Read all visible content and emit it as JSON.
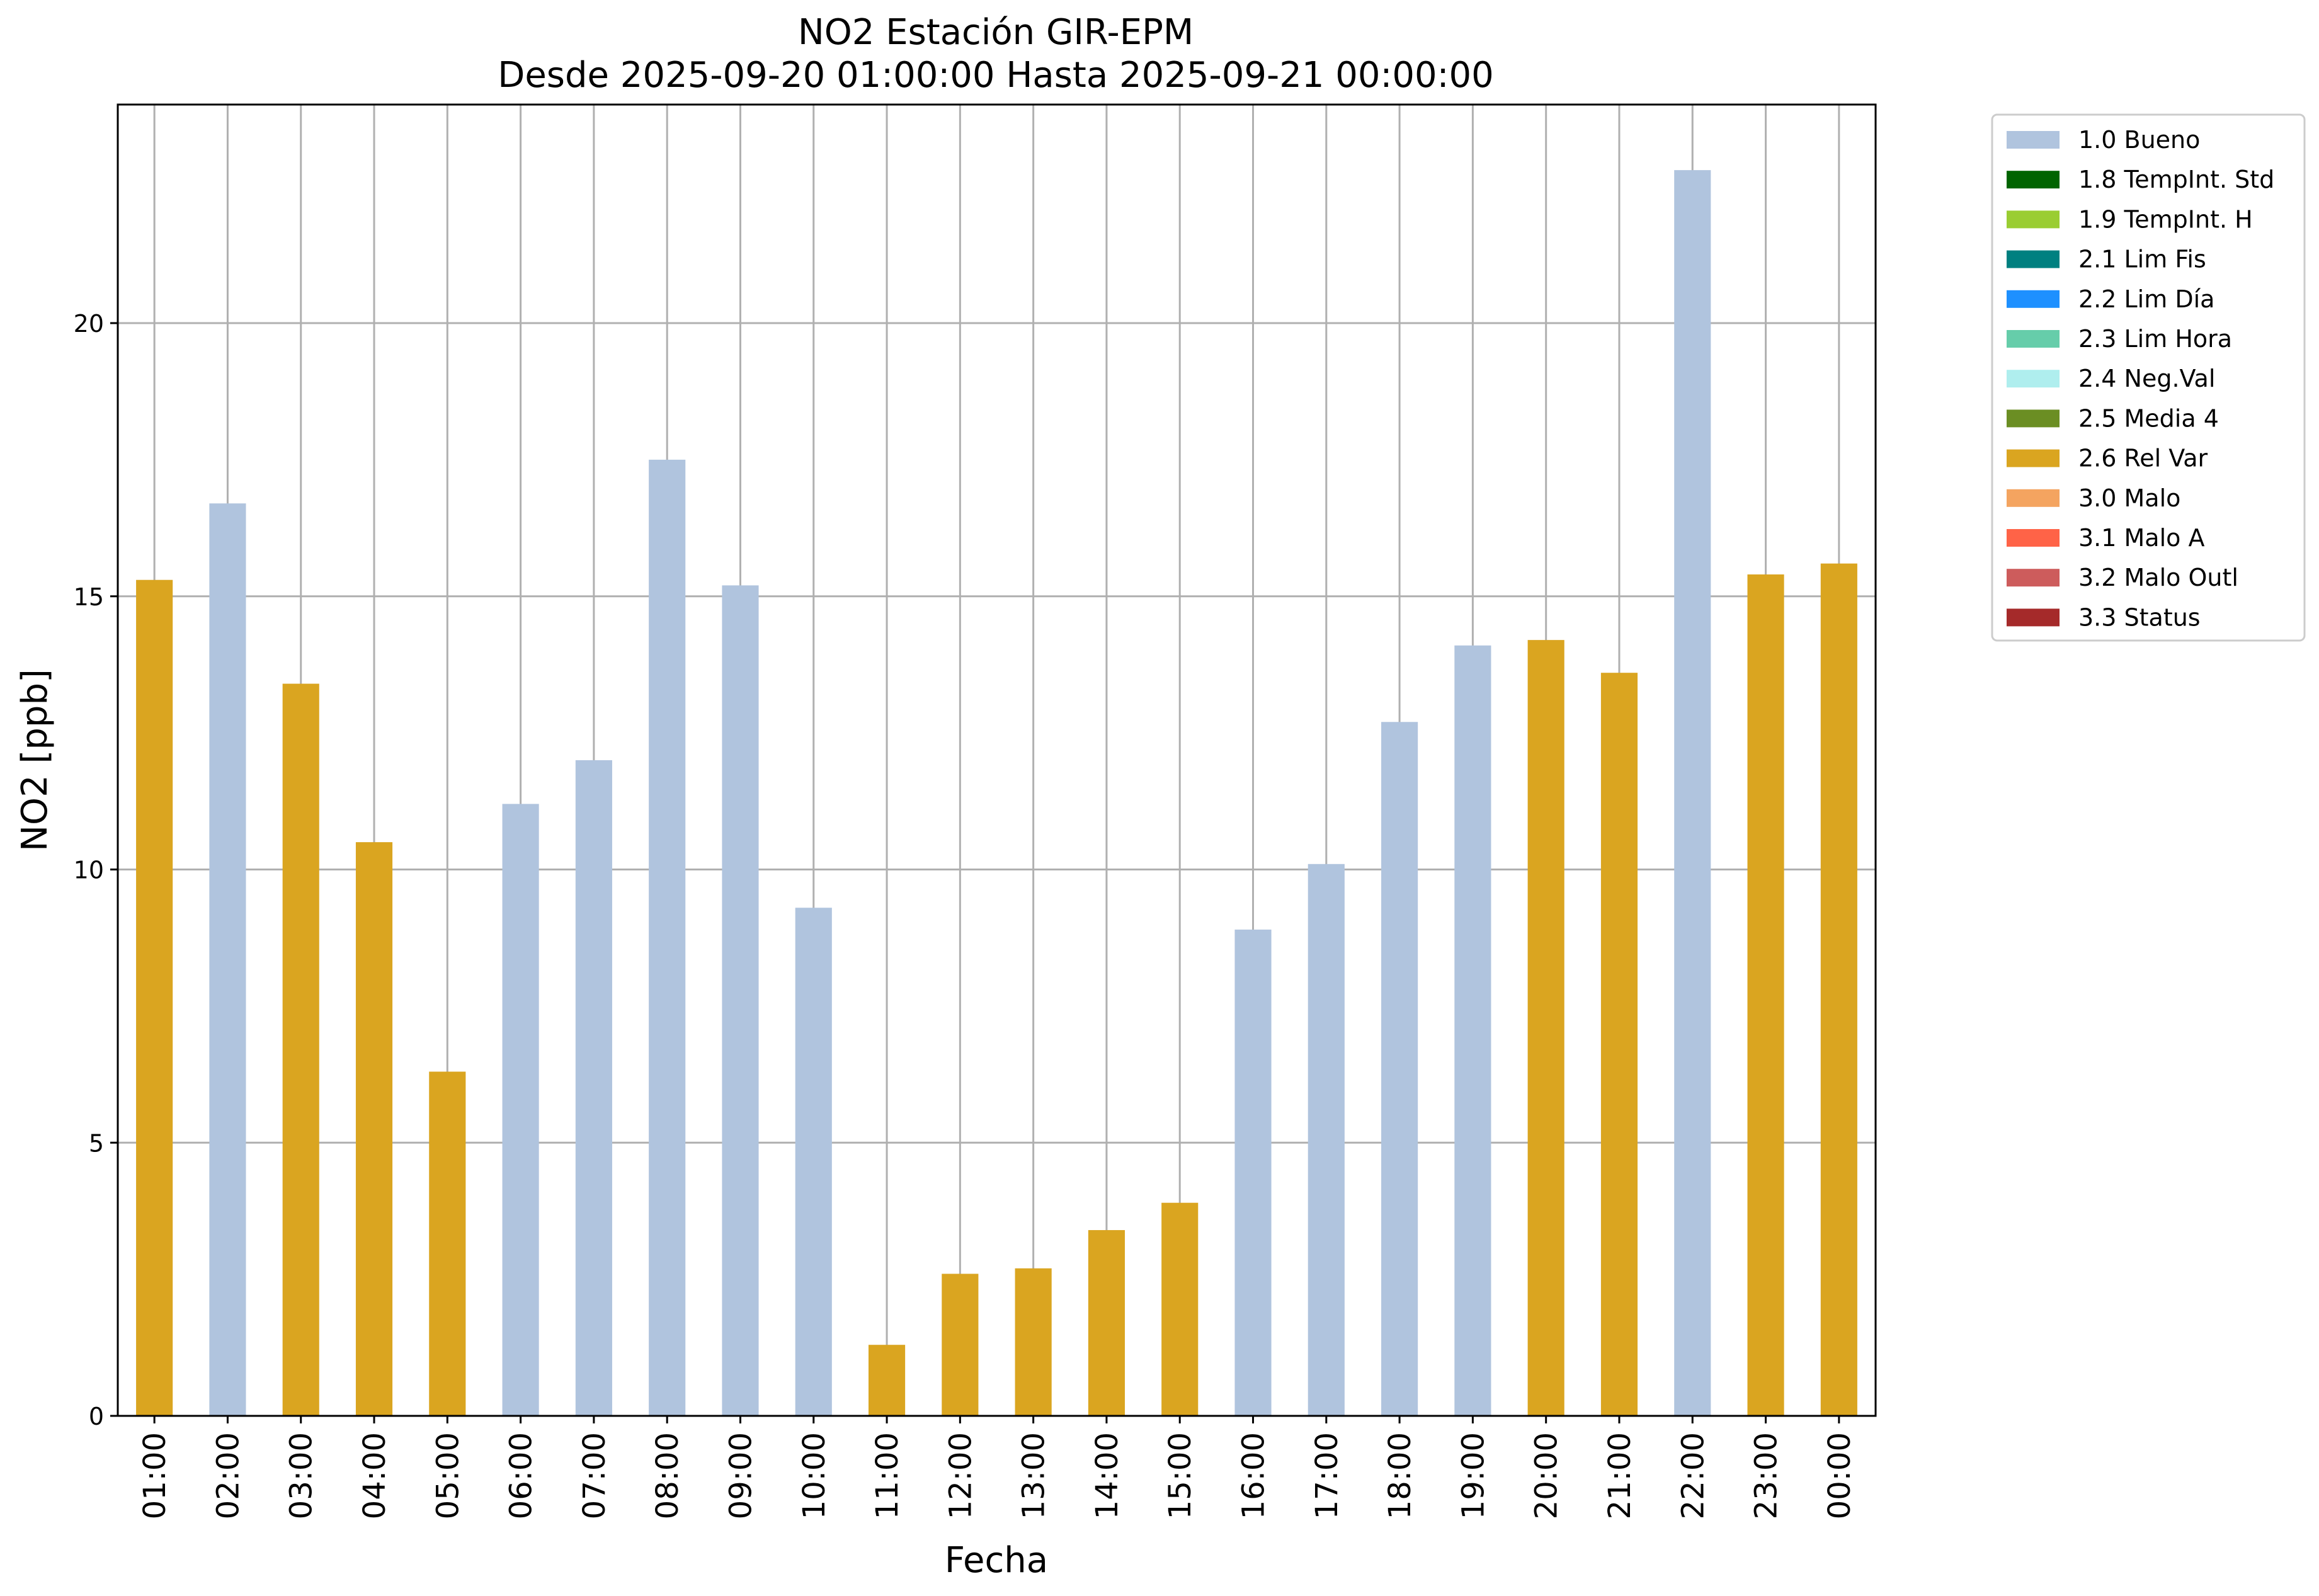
{
  "chart_data": {
    "type": "bar",
    "title": "NO2 Estación GIR-EPM",
    "subtitle": "Desde 2025-09-20 01:00:00 Hasta 2025-09-21 00:00:00",
    "xlabel": "Fecha",
    "ylabel": "NO2 [ppb]",
    "ylim": [
      0,
      24
    ],
    "yticks": [
      0,
      5,
      10,
      15,
      20
    ],
    "grid": true,
    "legend_position": "outside-top-right",
    "categories": [
      "01:00",
      "02:00",
      "03:00",
      "04:00",
      "05:00",
      "06:00",
      "07:00",
      "08:00",
      "09:00",
      "10:00",
      "11:00",
      "12:00",
      "13:00",
      "14:00",
      "15:00",
      "16:00",
      "17:00",
      "18:00",
      "19:00",
      "20:00",
      "21:00",
      "22:00",
      "23:00",
      "00:00"
    ],
    "values": [
      15.3,
      16.7,
      13.4,
      10.5,
      6.3,
      11.2,
      12.0,
      17.5,
      15.2,
      9.3,
      1.3,
      2.6,
      2.7,
      3.4,
      3.9,
      8.9,
      10.1,
      12.7,
      14.1,
      14.2,
      13.6,
      22.8,
      15.4,
      15.6
    ],
    "flags": [
      "2.6 Rel Var",
      "1.0 Bueno",
      "2.6 Rel Var",
      "2.6 Rel Var",
      "2.6 Rel Var",
      "1.0 Bueno",
      "1.0 Bueno",
      "1.0 Bueno",
      "1.0 Bueno",
      "1.0 Bueno",
      "2.6 Rel Var",
      "2.6 Rel Var",
      "2.6 Rel Var",
      "2.6 Rel Var",
      "2.6 Rel Var",
      "1.0 Bueno",
      "1.0 Bueno",
      "1.0 Bueno",
      "1.0 Bueno",
      "2.6 Rel Var",
      "2.6 Rel Var",
      "1.0 Bueno",
      "2.6 Rel Var",
      "2.6 Rel Var"
    ],
    "legend": [
      {
        "label": "1.0 Bueno",
        "color": "#b0c4de"
      },
      {
        "label": "1.8 TempInt. Std",
        "color": "#006400"
      },
      {
        "label": "1.9 TempInt. H",
        "color": "#9acd32"
      },
      {
        "label": "2.1 Lim Fis",
        "color": "#008080"
      },
      {
        "label": "2.2 Lim Día",
        "color": "#1e90ff"
      },
      {
        "label": "2.3 Lim Hora",
        "color": "#66cdaa"
      },
      {
        "label": "2.4 Neg.Val",
        "color": "#afeeee"
      },
      {
        "label": "2.5 Media 4",
        "color": "#6b8e23"
      },
      {
        "label": "2.6 Rel Var",
        "color": "#daa520"
      },
      {
        "label": "3.0 Malo",
        "color": "#f4a460"
      },
      {
        "label": "3.1 Malo A",
        "color": "#ff6347"
      },
      {
        "label": "3.2 Malo Outl",
        "color": "#cd5c5c"
      },
      {
        "label": "3.3 Status",
        "color": "#a52a2a"
      }
    ]
  }
}
